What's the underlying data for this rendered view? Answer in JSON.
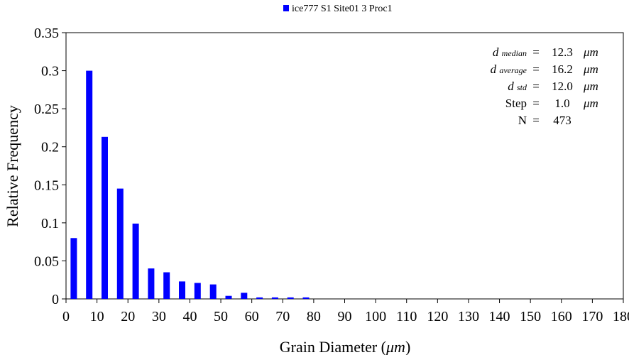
{
  "chart_data": {
    "type": "bar",
    "xlabel_prefix": "Grain Diameter (",
    "xlabel_unit": "μm",
    "xlabel_suffix": ")",
    "ylabel": "Relative Frequency",
    "xlim": [
      0,
      180
    ],
    "ylim": [
      0,
      0.35
    ],
    "x_ticks": [
      0,
      10,
      20,
      30,
      40,
      50,
      60,
      70,
      80,
      90,
      100,
      110,
      120,
      130,
      140,
      150,
      160,
      170,
      180
    ],
    "y_ticks": [
      0,
      0.05,
      0.1,
      0.15,
      0.2,
      0.25,
      0.3,
      0.35
    ],
    "y_tick_labels": [
      "0",
      "0.05",
      "0.1",
      "0.15",
      "0.2",
      "0.25",
      "0.3",
      "0.35"
    ],
    "grid": false,
    "legend_position": "top-center",
    "series": [
      {
        "name": "ice777 S1 Site01 3 Proc1",
        "color": "#0000ff",
        "x": [
          2.5,
          7.5,
          12.5,
          17.5,
          22.5,
          27.5,
          32.5,
          37.5,
          42.5,
          47.5,
          52.5,
          57.5,
          62.5,
          67.5,
          72.5,
          77.5
        ],
        "values": [
          0.08,
          0.3,
          0.213,
          0.145,
          0.099,
          0.04,
          0.035,
          0.023,
          0.021,
          0.019,
          0.004,
          0.008,
          0.002,
          0.002,
          0.002,
          0.002
        ]
      }
    ],
    "statistics": [
      {
        "symbol": "d",
        "subscript": "median",
        "equals": "=",
        "value": "12.3",
        "unit": "μm"
      },
      {
        "symbol": "d",
        "subscript": "average",
        "equals": "=",
        "value": "16.2",
        "unit": "μm"
      },
      {
        "symbol": "d",
        "subscript": "std",
        "equals": "=",
        "value": "12.0",
        "unit": "μm"
      },
      {
        "symbol": "Step",
        "subscript": "",
        "equals": "=",
        "value": "1.0",
        "unit": "μm"
      },
      {
        "symbol": "N",
        "subscript": "",
        "equals": "=",
        "value": "473",
        "unit": ""
      }
    ]
  }
}
